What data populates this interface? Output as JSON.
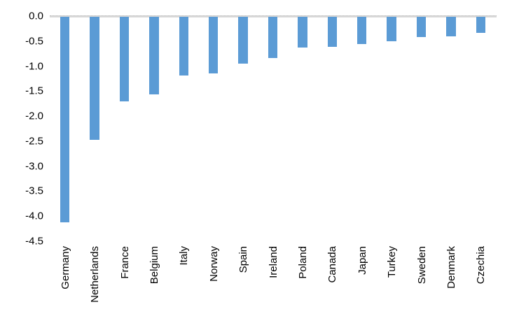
{
  "chart_data": {
    "type": "bar",
    "title": "",
    "xlabel": "",
    "ylabel": "",
    "categories": [
      "Germany",
      "Netherlands",
      "France",
      "Belgium",
      "Italy",
      "Norway",
      "Spain",
      "Ireland",
      "Poland",
      "Canada",
      "Japan",
      "Turkey",
      "Sweden",
      "Denmark",
      "Czechia"
    ],
    "values": [
      -4.12,
      -2.48,
      -1.71,
      -1.56,
      -1.19,
      -1.14,
      -0.95,
      -0.84,
      -0.63,
      -0.61,
      -0.56,
      -0.51,
      -0.42,
      -0.4,
      -0.34
    ],
    "ylim": [
      -4.5,
      0.0
    ],
    "ytick_labels": [
      "0.0",
      "-0.5",
      "-1.0",
      "-1.5",
      "-2.0",
      "-2.5",
      "-3.0",
      "-3.5",
      "-4.0",
      "-4.5"
    ],
    "bar_color": "#5B9BD5",
    "zero_line_color": "#D9D9D9",
    "text_color": "#000000",
    "background_color": "#FFFFFF",
    "grid": "zero-line-only",
    "legend_position": "none",
    "bar_orientation": "vertical-negative"
  }
}
